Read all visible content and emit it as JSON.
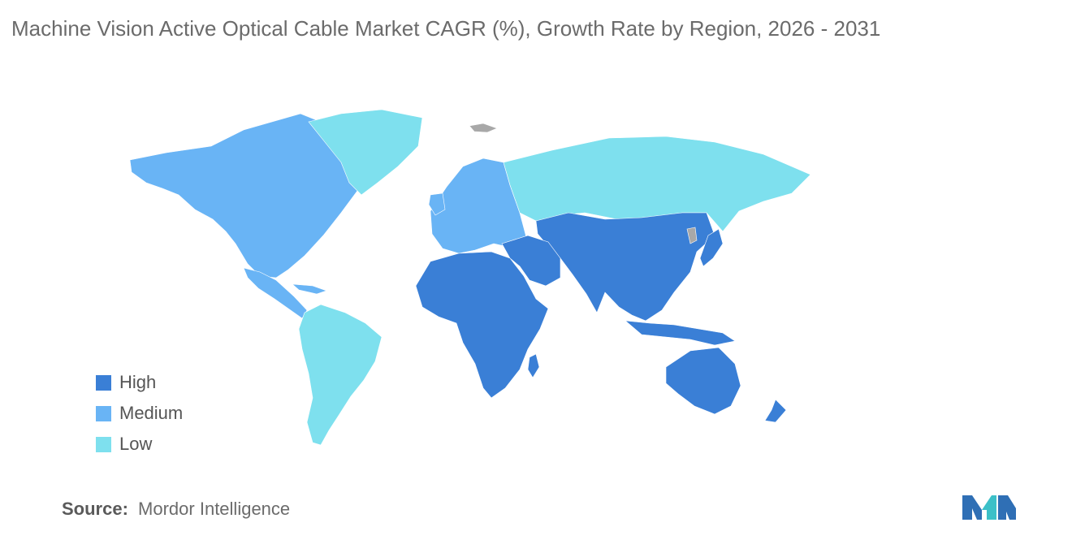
{
  "title": "Machine Vision Active Optical Cable Market CAGR (%), Growth Rate by Region, 2026 - 2031",
  "colors": {
    "high": "#3a7fd6",
    "medium": "#69b4f5",
    "low": "#7ee0ee",
    "no_data": "#a8a8a8"
  },
  "legend": [
    {
      "label": "High",
      "color": "#3a7fd6"
    },
    {
      "label": "Medium",
      "color": "#69b4f5"
    },
    {
      "label": "Low",
      "color": "#7ee0ee"
    }
  ],
  "regions": [
    {
      "region": "North America",
      "level": "Medium"
    },
    {
      "region": "Europe",
      "level": "Medium"
    },
    {
      "region": "Asia Pacific",
      "level": "High"
    },
    {
      "region": "Middle East and Africa",
      "level": "High"
    },
    {
      "region": "South America",
      "level": "Low"
    },
    {
      "region": "Russia",
      "level": "Low"
    },
    {
      "region": "Greenland",
      "level": "Low"
    }
  ],
  "source": {
    "label": "Source:",
    "value": "Mordor Intelligence"
  },
  "logo_icon": "mordor-intelligence-logo-icon"
}
